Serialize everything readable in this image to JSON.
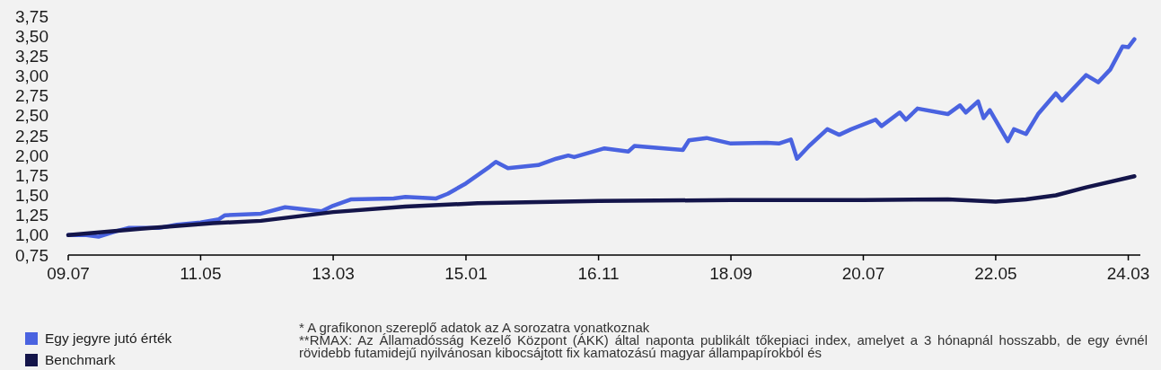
{
  "chart_data": {
    "type": "line",
    "x": [
      "2009-07",
      "2009-10",
      "2009-12",
      "2010-03",
      "2010-05",
      "2010-10",
      "2011-01",
      "2011-05",
      "2011-08",
      "2011-09",
      "2012-03",
      "2012-07",
      "2013-01",
      "2013-03",
      "2013-06",
      "2014-01",
      "2014-03",
      "2014-08",
      "2014-10",
      "2015-01",
      "2015-05",
      "2015-06",
      "2015-08",
      "2016-01",
      "2016-04",
      "2016-06",
      "2016-07",
      "2016-12",
      "2017-04",
      "2017-05",
      "2018-01",
      "2018-02",
      "2018-05",
      "2018-09",
      "2019-03",
      "2019-05",
      "2019-07",
      "2019-08",
      "2019-10",
      "2020-01",
      "2020-03",
      "2020-05",
      "2020-09",
      "2020-10",
      "2021-01",
      "2021-02",
      "2021-04",
      "2021-09",
      "2021-11",
      "2021-12",
      "2022-02",
      "2022-03",
      "2022-04",
      "2022-07",
      "2022-08",
      "2022-10",
      "2022-12",
      "2023-03",
      "2023-04",
      "2023-08",
      "2023-10",
      "2023-12",
      "2024-02",
      "2024-03",
      "2024-04"
    ],
    "series": [
      {
        "name": "Egy jegyre jutó érték",
        "color": "#4a63e0",
        "values": [
          1.0,
          1.0,
          0.98,
          1.05,
          1.09,
          1.09,
          1.13,
          1.16,
          1.2,
          1.25,
          1.27,
          1.35,
          1.3,
          1.37,
          1.45,
          1.46,
          1.48,
          1.46,
          1.52,
          1.65,
          1.86,
          1.92,
          1.84,
          1.88,
          1.96,
          2.0,
          1.98,
          2.09,
          2.05,
          2.12,
          2.07,
          2.19,
          2.22,
          2.15,
          2.16,
          2.15,
          2.2,
          1.96,
          2.12,
          2.33,
          2.26,
          2.33,
          2.45,
          2.37,
          2.54,
          2.45,
          2.59,
          2.52,
          2.63,
          2.54,
          2.68,
          2.47,
          2.57,
          2.18,
          2.33,
          2.27,
          2.52,
          2.78,
          2.69,
          3.01,
          2.92,
          3.08,
          3.37,
          3.36,
          3.46
        ]
      },
      {
        "name": "Benchmark",
        "color": "#14154a",
        "x": [
          "2009-07",
          "2010-07",
          "2011-07",
          "2012-03",
          "2013-03",
          "2014-03",
          "2015-03",
          "2016-11",
          "2018-09",
          "2020-07",
          "2021-09",
          "2022-05",
          "2022-10",
          "2023-03",
          "2023-08",
          "2024-04"
        ],
        "values": [
          1.0,
          1.08,
          1.15,
          1.18,
          1.29,
          1.36,
          1.4,
          1.43,
          1.44,
          1.44,
          1.45,
          1.42,
          1.45,
          1.5,
          1.6,
          1.74
        ]
      }
    ],
    "xlim": [
      "2009-07",
      "2024-05"
    ],
    "xticks": [
      {
        "value": "2009-07",
        "label": "09.07"
      },
      {
        "value": "2011-05",
        "label": "11.05"
      },
      {
        "value": "2013-03",
        "label": "13.03"
      },
      {
        "value": "2015-01",
        "label": "15.01"
      },
      {
        "value": "2016-11",
        "label": "16.11"
      },
      {
        "value": "2018-09",
        "label": "18.09"
      },
      {
        "value": "2020-07",
        "label": "20.07"
      },
      {
        "value": "2022-05",
        "label": "22.05"
      },
      {
        "value": "2024-03",
        "label": "24.03"
      }
    ],
    "ylim": [
      0.75,
      3.75
    ],
    "yticks": [
      {
        "value": 0.75,
        "label": "0,75"
      },
      {
        "value": 1.0,
        "label": "1,00"
      },
      {
        "value": 1.25,
        "label": "1,25"
      },
      {
        "value": 1.5,
        "label": "1,50"
      },
      {
        "value": 1.75,
        "label": "1,75"
      },
      {
        "value": 2.0,
        "label": "2,00"
      },
      {
        "value": 2.25,
        "label": "2,25"
      },
      {
        "value": 2.5,
        "label": "2,50"
      },
      {
        "value": 2.75,
        "label": "2,75"
      },
      {
        "value": 3.0,
        "label": "3,00"
      },
      {
        "value": 3.25,
        "label": "3,25"
      },
      {
        "value": 3.5,
        "label": "3,50"
      },
      {
        "value": 3.75,
        "label": "3,75"
      }
    ],
    "grid": false,
    "legend": "bottom left",
    "line_style": "solid",
    "marker": "none",
    "annotations": [
      "* A grafikonon szereplő adatok az A sorozatra vonatkoznak",
      "**RMAX: Az Államadósság Kezelő Központ (ÁKK) által naponta publikált tőkepiaci index, amelyet a 3 hónapnál hosszabb, de egy évnél rövidebb futamidejű nyilvánosan kibocsájtott fix kamatozású magyar állampapírokból és"
    ]
  }
}
